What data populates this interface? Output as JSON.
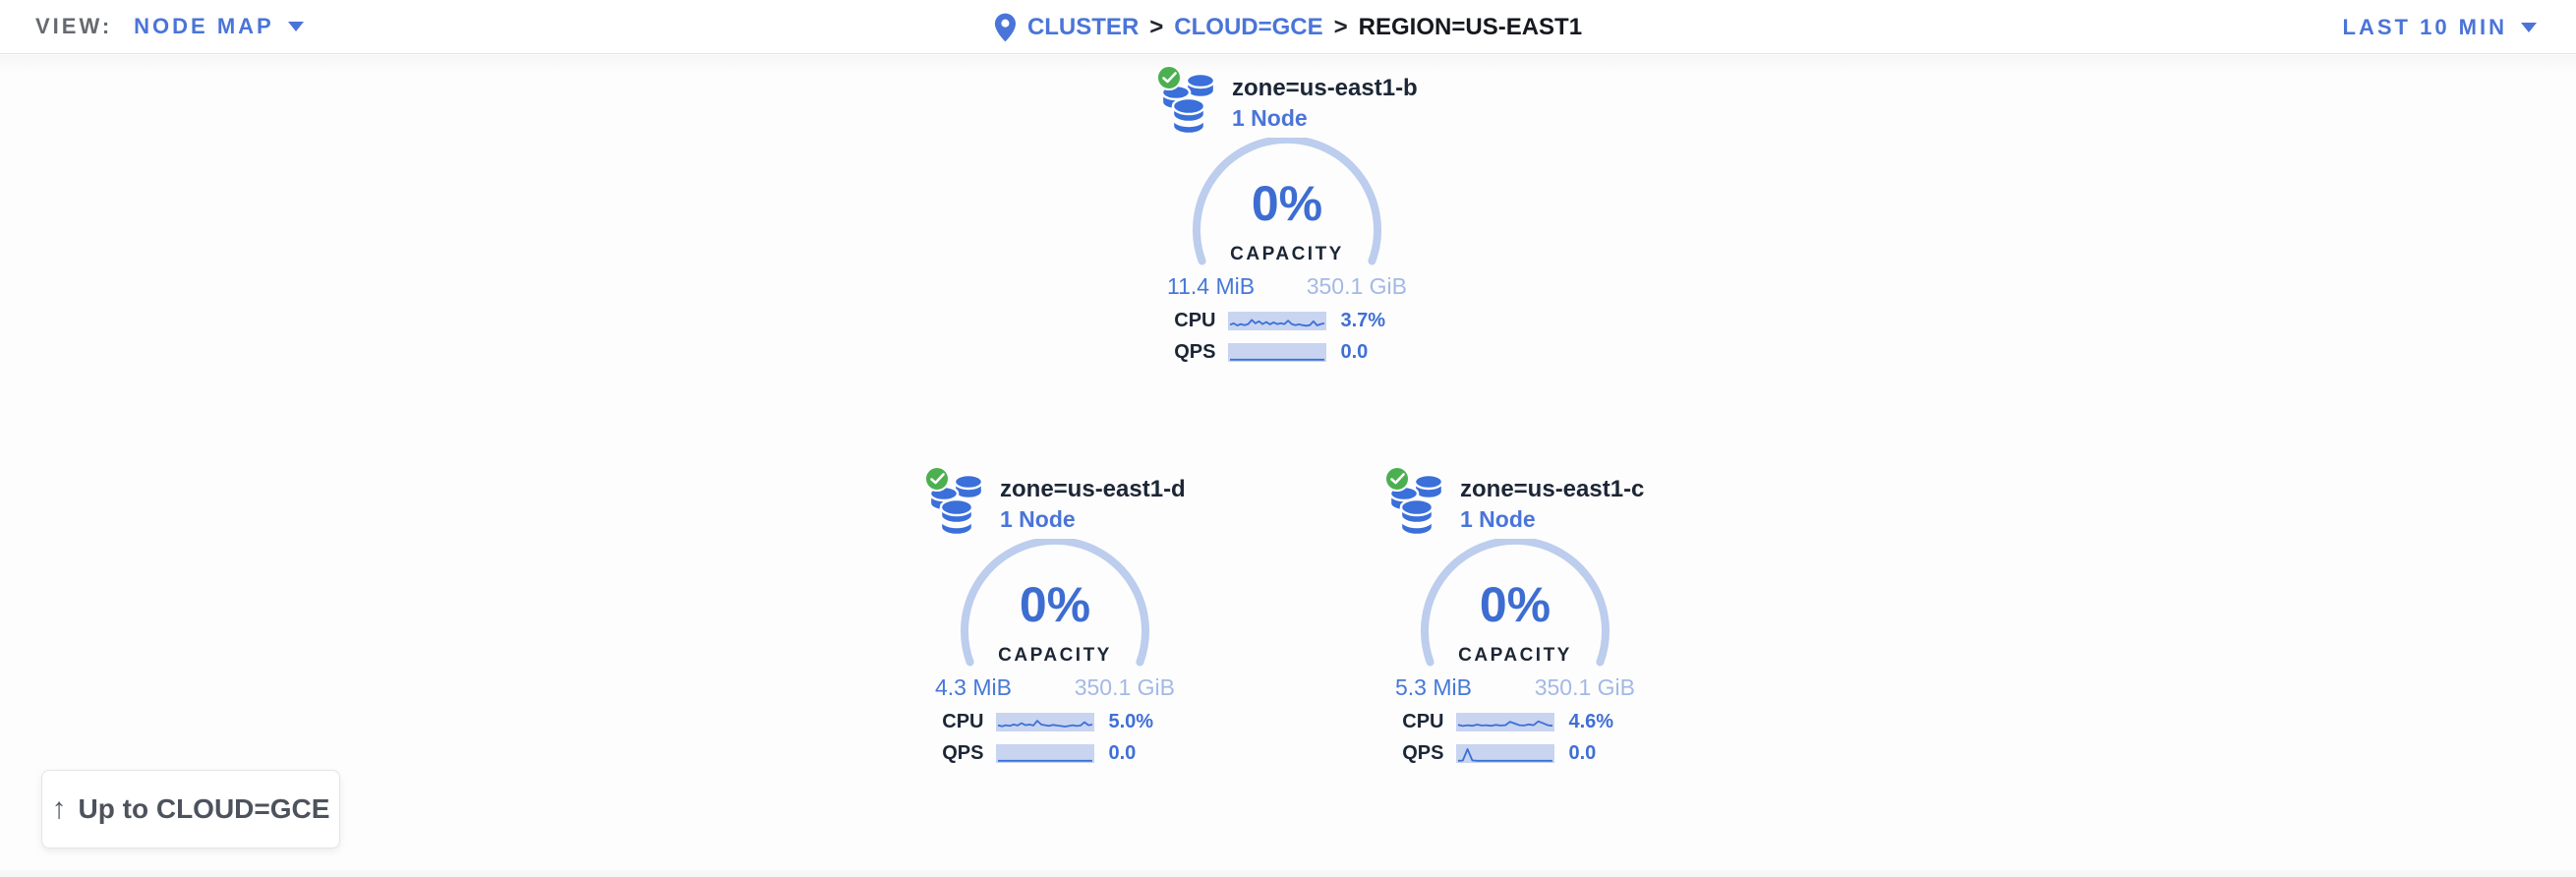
{
  "toolbar": {
    "view_label": "VIEW:",
    "view_value": "NODE MAP",
    "time_range": "LAST 10 MIN"
  },
  "breadcrumb": {
    "separator": ">",
    "items": [
      {
        "label": "CLUSTER",
        "link": true
      },
      {
        "label": "CLOUD=GCE",
        "link": true
      },
      {
        "label": "REGION=US-EAST1",
        "link": false
      }
    ]
  },
  "zones": [
    {
      "name": "zone=us-east1-b",
      "nodes_label": "1 Node",
      "status": "healthy",
      "capacity_pct": "0%",
      "capacity_label": "CAPACITY",
      "used": "11.4 MiB",
      "total": "350.1 GiB",
      "cpu_label": "CPU",
      "cpu_value": "3.7%",
      "qps_label": "QPS",
      "qps_value": "0.0",
      "cpu_spark": [
        0.25,
        0.35,
        0.2,
        0.3,
        0.22,
        0.3,
        0.6,
        0.35,
        0.5,
        0.3,
        0.45,
        0.28,
        0.42,
        0.3,
        0.36,
        0.3,
        0.55,
        0.3,
        0.22,
        0.28,
        0.22,
        0.18,
        0.22,
        0.5,
        0.2,
        0.3,
        0.35
      ],
      "qps_spark": [
        0,
        0,
        0,
        0,
        0,
        0,
        0,
        0,
        0,
        0,
        0,
        0,
        0,
        0,
        0,
        0,
        0,
        0,
        0,
        0,
        0,
        0,
        0,
        0,
        0,
        0,
        0
      ]
    },
    {
      "name": "zone=us-east1-d",
      "nodes_label": "1 Node",
      "status": "healthy",
      "capacity_pct": "0%",
      "capacity_label": "CAPACITY",
      "used": "4.3 MiB",
      "total": "350.1 GiB",
      "cpu_label": "CPU",
      "cpu_value": "5.0%",
      "qps_label": "QPS",
      "qps_value": "0.0",
      "cpu_spark": [
        0.3,
        0.22,
        0.3,
        0.25,
        0.35,
        0.28,
        0.45,
        0.3,
        0.35,
        0.28,
        0.62,
        0.35,
        0.3,
        0.25,
        0.32,
        0.28,
        0.24,
        0.2,
        0.24,
        0.3,
        0.24,
        0.28,
        0.52,
        0.3,
        0.34
      ],
      "qps_spark": [
        0,
        0,
        0,
        0,
        0,
        0,
        0,
        0,
        0,
        0,
        0,
        0,
        0,
        0,
        0,
        0,
        0,
        0,
        0,
        0,
        0,
        0,
        0,
        0,
        0
      ]
    },
    {
      "name": "zone=us-east1-c",
      "nodes_label": "1 Node",
      "status": "healthy",
      "capacity_pct": "0%",
      "capacity_label": "CAPACITY",
      "used": "5.3 MiB",
      "total": "350.1 GiB",
      "cpu_label": "CPU",
      "cpu_value": "4.6%",
      "qps_label": "QPS",
      "qps_value": "0.0",
      "cpu_spark": [
        0.32,
        0.24,
        0.3,
        0.26,
        0.34,
        0.28,
        0.3,
        0.26,
        0.32,
        0.28,
        0.3,
        0.55,
        0.42,
        0.3,
        0.28,
        0.36,
        0.3,
        0.58,
        0.44,
        0.3,
        0.26
      ],
      "qps_spark": [
        0,
        0.02,
        0.85,
        0.03,
        0,
        0,
        0,
        0,
        0,
        0,
        0,
        0,
        0,
        0,
        0,
        0,
        0,
        0,
        0,
        0,
        0
      ]
    }
  ],
  "up_button": {
    "arrow": "↑",
    "label": "Up to CLOUD=GCE"
  },
  "colors": {
    "accent_blue": "#3e6dd2",
    "link_blue": "#4a74d8",
    "gauge_arc": "#bccdee",
    "spark_bg": "#c8d4f0",
    "spark_line": "#3b6fd9",
    "dark_text": "#1c2635",
    "total_capacity_text": "#a3b9e6",
    "healthy_green": "#4caf50",
    "gray_label": "#666a70"
  }
}
